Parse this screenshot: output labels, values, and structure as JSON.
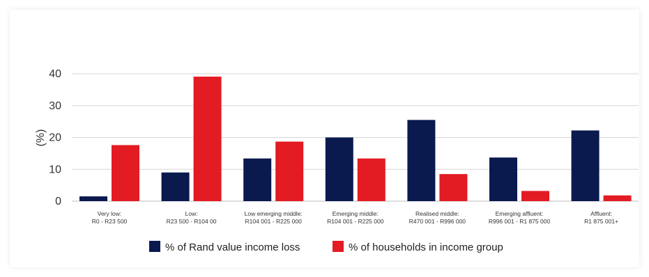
{
  "chart_data": {
    "type": "bar",
    "ylabel": "(%)",
    "ylim": [
      0,
      40
    ],
    "yticks": [
      "0",
      "10",
      "20",
      "30",
      "40"
    ],
    "grid": true,
    "legend_position": "bottom",
    "categories": [
      {
        "line1": "Very low:",
        "line2": "R0 - R23 500"
      },
      {
        "line1": "Low:",
        "line2": "R23 500 - R104 00"
      },
      {
        "line1": "Low emerging middle:",
        "line2": "R104 001 - R225 000"
      },
      {
        "line1": "Emerging middle:",
        "line2": "R104 001 - R225 000"
      },
      {
        "line1": "Realised middle:",
        "line2": "R470 001 - R996 000"
      },
      {
        "line1": "Emerging affluent:",
        "line2": "R996 001 - R1 875 000"
      },
      {
        "line1": "Affluent:",
        "line2": "R1 875 001+"
      }
    ],
    "series": [
      {
        "name": "% of Rand value income loss",
        "color": "#0a1a4f",
        "values": [
          1.5,
          9,
          13.4,
          20,
          25.5,
          13.7,
          22.2
        ]
      },
      {
        "name": "% of households in income group",
        "color": "#e31b23",
        "values": [
          17.6,
          39.1,
          18.7,
          13.4,
          8.5,
          3.2,
          1.8
        ]
      }
    ]
  }
}
